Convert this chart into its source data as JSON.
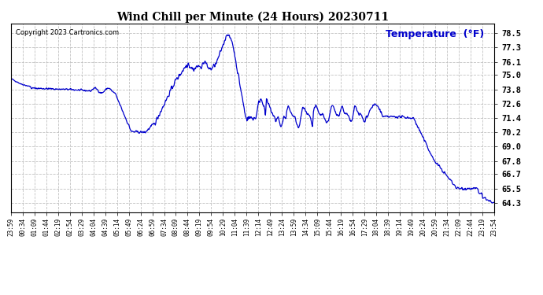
{
  "title": "Wind Chill per Minute (24 Hours) 20230711",
  "ylabel": "Temperature  (°F)",
  "copyright": "Copyright 2023 Cartronics.com",
  "line_color": "#0000CC",
  "ylabel_color": "#0000CC",
  "background_color": "#ffffff",
  "grid_color": "#aaaaaa",
  "ylim": [
    63.5,
    79.3
  ],
  "yticks": [
    64.3,
    65.5,
    66.7,
    67.8,
    69.0,
    70.2,
    71.4,
    72.6,
    73.8,
    75.0,
    76.1,
    77.3,
    78.5
  ],
  "xtick_labels": [
    "23:59",
    "00:34",
    "01:09",
    "01:44",
    "02:19",
    "02:54",
    "03:29",
    "04:04",
    "04:39",
    "05:14",
    "05:49",
    "06:24",
    "06:59",
    "07:34",
    "08:09",
    "08:44",
    "09:19",
    "09:54",
    "10:29",
    "11:04",
    "11:39",
    "12:14",
    "12:49",
    "13:24",
    "13:59",
    "14:34",
    "15:09",
    "15:44",
    "16:19",
    "16:54",
    "17:29",
    "18:04",
    "18:39",
    "19:14",
    "19:49",
    "20:24",
    "20:59",
    "21:34",
    "22:09",
    "22:44",
    "23:19",
    "23:54"
  ]
}
